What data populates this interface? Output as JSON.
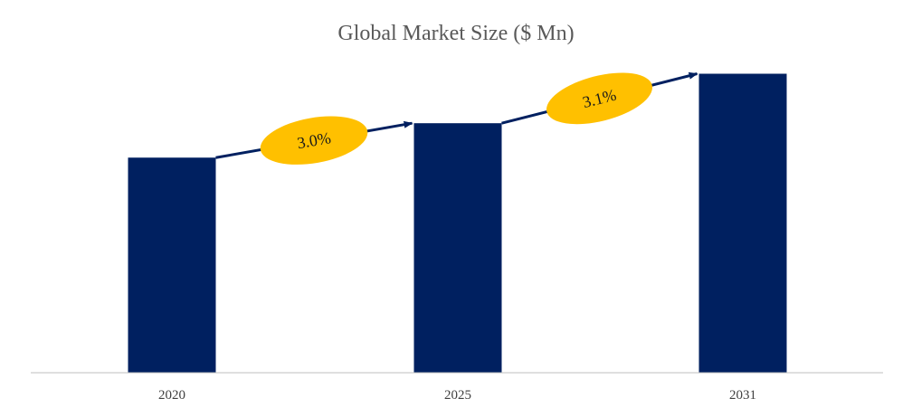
{
  "chart_data": {
    "type": "bar",
    "title": "Global Market Size ($ Mn)",
    "xlabel": "",
    "ylabel": "",
    "categories": [
      "2020",
      "2025",
      "2031"
    ],
    "values": [
      100,
      116.0,
      139.0
    ],
    "ylim": [
      0,
      143
    ],
    "grid": false,
    "legend": "none",
    "annotations": [
      {
        "label": "3.0%",
        "from": "2020",
        "to": "2025",
        "type": "cagr"
      },
      {
        "label": "3.1%",
        "from": "2025",
        "to": "2031",
        "type": "cagr"
      }
    ],
    "colors": {
      "bar": "#002060",
      "arrow": "#002060",
      "ellipse": "#FFC000",
      "axis": "#BFBFBF",
      "title": "#595959"
    }
  }
}
